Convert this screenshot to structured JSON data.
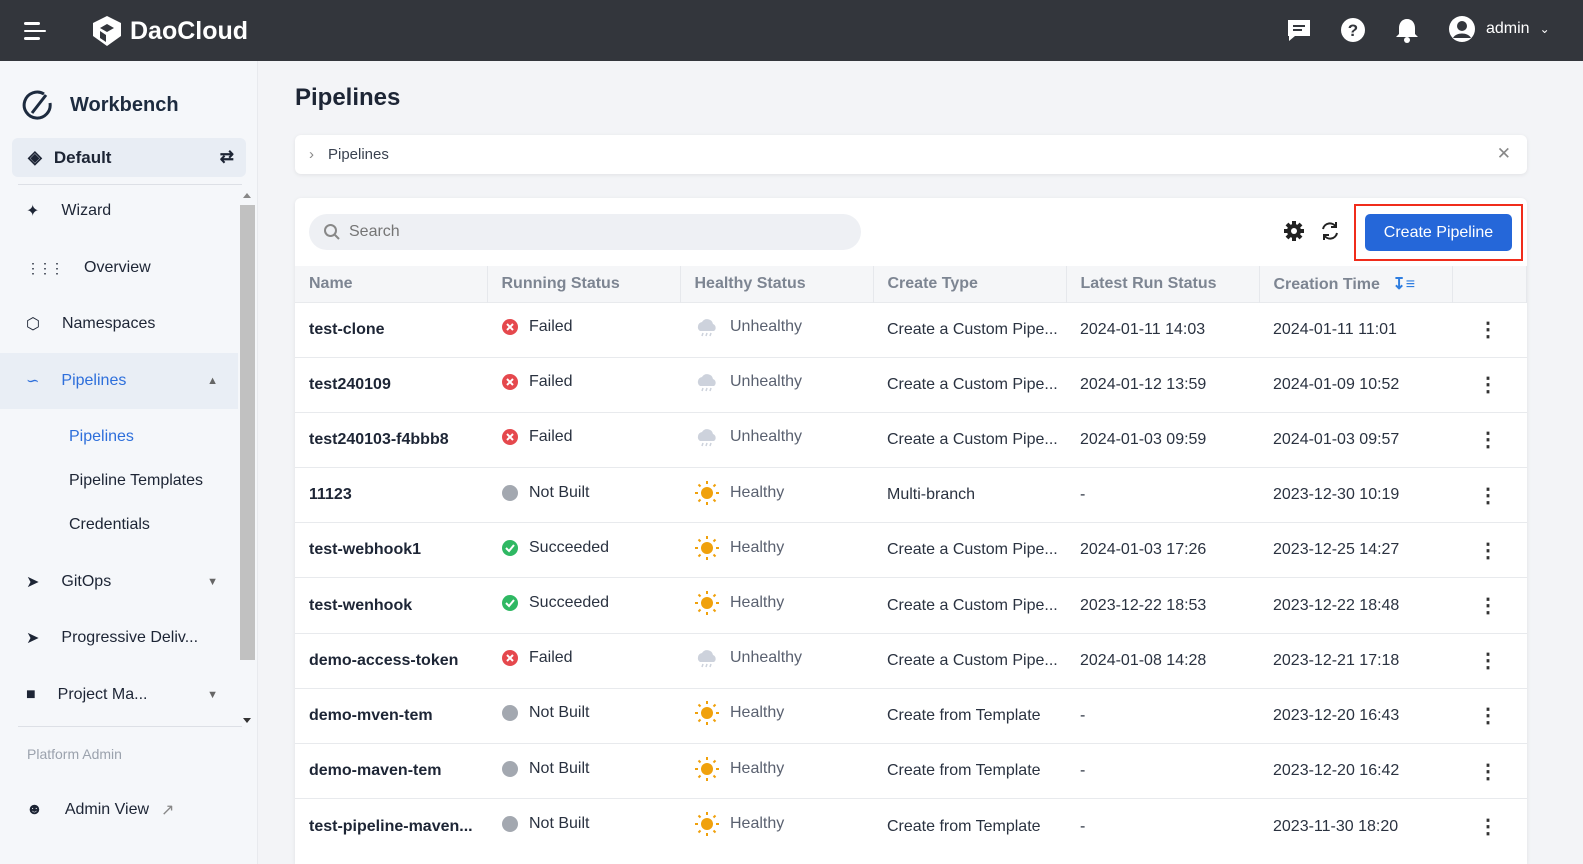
{
  "topbar": {
    "brand": "DaoCloud",
    "user": "admin"
  },
  "sidebar": {
    "title": "Workbench",
    "workspace": "Default",
    "items": [
      {
        "label": "Wizard"
      },
      {
        "label": "Overview"
      },
      {
        "label": "Namespaces"
      },
      {
        "label": "Pipelines"
      },
      {
        "label": "GitOps"
      },
      {
        "label": "Progressive Deliv..."
      },
      {
        "label": "Project Ma..."
      }
    ],
    "subitems": [
      {
        "label": "Pipelines"
      },
      {
        "label": "Pipeline Templates"
      },
      {
        "label": "Credentials"
      }
    ],
    "section": "Platform Admin",
    "admin_view": "Admin View"
  },
  "page": {
    "title": "Pipelines",
    "breadcrumb": "Pipelines",
    "search_placeholder": "Search",
    "create_label": "Create Pipeline"
  },
  "colors": {
    "accent": "#2567d9",
    "failed": "#e5484d",
    "succeeded": "#2fb863",
    "notbuilt": "#a3a8b0",
    "healthy": "#f0a10c",
    "unhealthy": "#cdd2dc"
  },
  "table": {
    "columns": [
      "Name",
      "Running Status",
      "Healthy Status",
      "Create Type",
      "Latest Run Status",
      "Creation Time"
    ],
    "rows": [
      {
        "name": "test-clone",
        "run": "Failed",
        "health": "Unhealthy",
        "type": "Create a Custom Pipe...",
        "latest": "2024-01-11 14:03",
        "created": "2024-01-11 11:01"
      },
      {
        "name": "test240109",
        "run": "Failed",
        "health": "Unhealthy",
        "type": "Create a Custom Pipe...",
        "latest": "2024-01-12 13:59",
        "created": "2024-01-09 10:52"
      },
      {
        "name": "test240103-f4bbb8",
        "run": "Failed",
        "health": "Unhealthy",
        "type": "Create a Custom Pipe...",
        "latest": "2024-01-03 09:59",
        "created": "2024-01-03 09:57"
      },
      {
        "name": "11123",
        "run": "Not Built",
        "health": "Healthy",
        "type": "Multi-branch",
        "latest": "-",
        "created": "2023-12-30 10:19"
      },
      {
        "name": "test-webhook1",
        "run": "Succeeded",
        "health": "Healthy",
        "type": "Create a Custom Pipe...",
        "latest": "2024-01-03 17:26",
        "created": "2023-12-25 14:27"
      },
      {
        "name": "test-wenhook",
        "run": "Succeeded",
        "health": "Healthy",
        "type": "Create a Custom Pipe...",
        "latest": "2023-12-22 18:53",
        "created": "2023-12-22 18:48"
      },
      {
        "name": "demo-access-token",
        "run": "Failed",
        "health": "Unhealthy",
        "type": "Create a Custom Pipe...",
        "latest": "2024-01-08 14:28",
        "created": "2023-12-21 17:18"
      },
      {
        "name": "demo-mven-tem",
        "run": "Not Built",
        "health": "Healthy",
        "type": "Create from Template",
        "latest": "-",
        "created": "2023-12-20 16:43"
      },
      {
        "name": "demo-maven-tem",
        "run": "Not Built",
        "health": "Healthy",
        "type": "Create from Template",
        "latest": "-",
        "created": "2023-12-20 16:42"
      },
      {
        "name": "test-pipeline-maven...",
        "run": "Not Built",
        "health": "Healthy",
        "type": "Create from Template",
        "latest": "-",
        "created": "2023-11-30 18:20"
      }
    ]
  }
}
